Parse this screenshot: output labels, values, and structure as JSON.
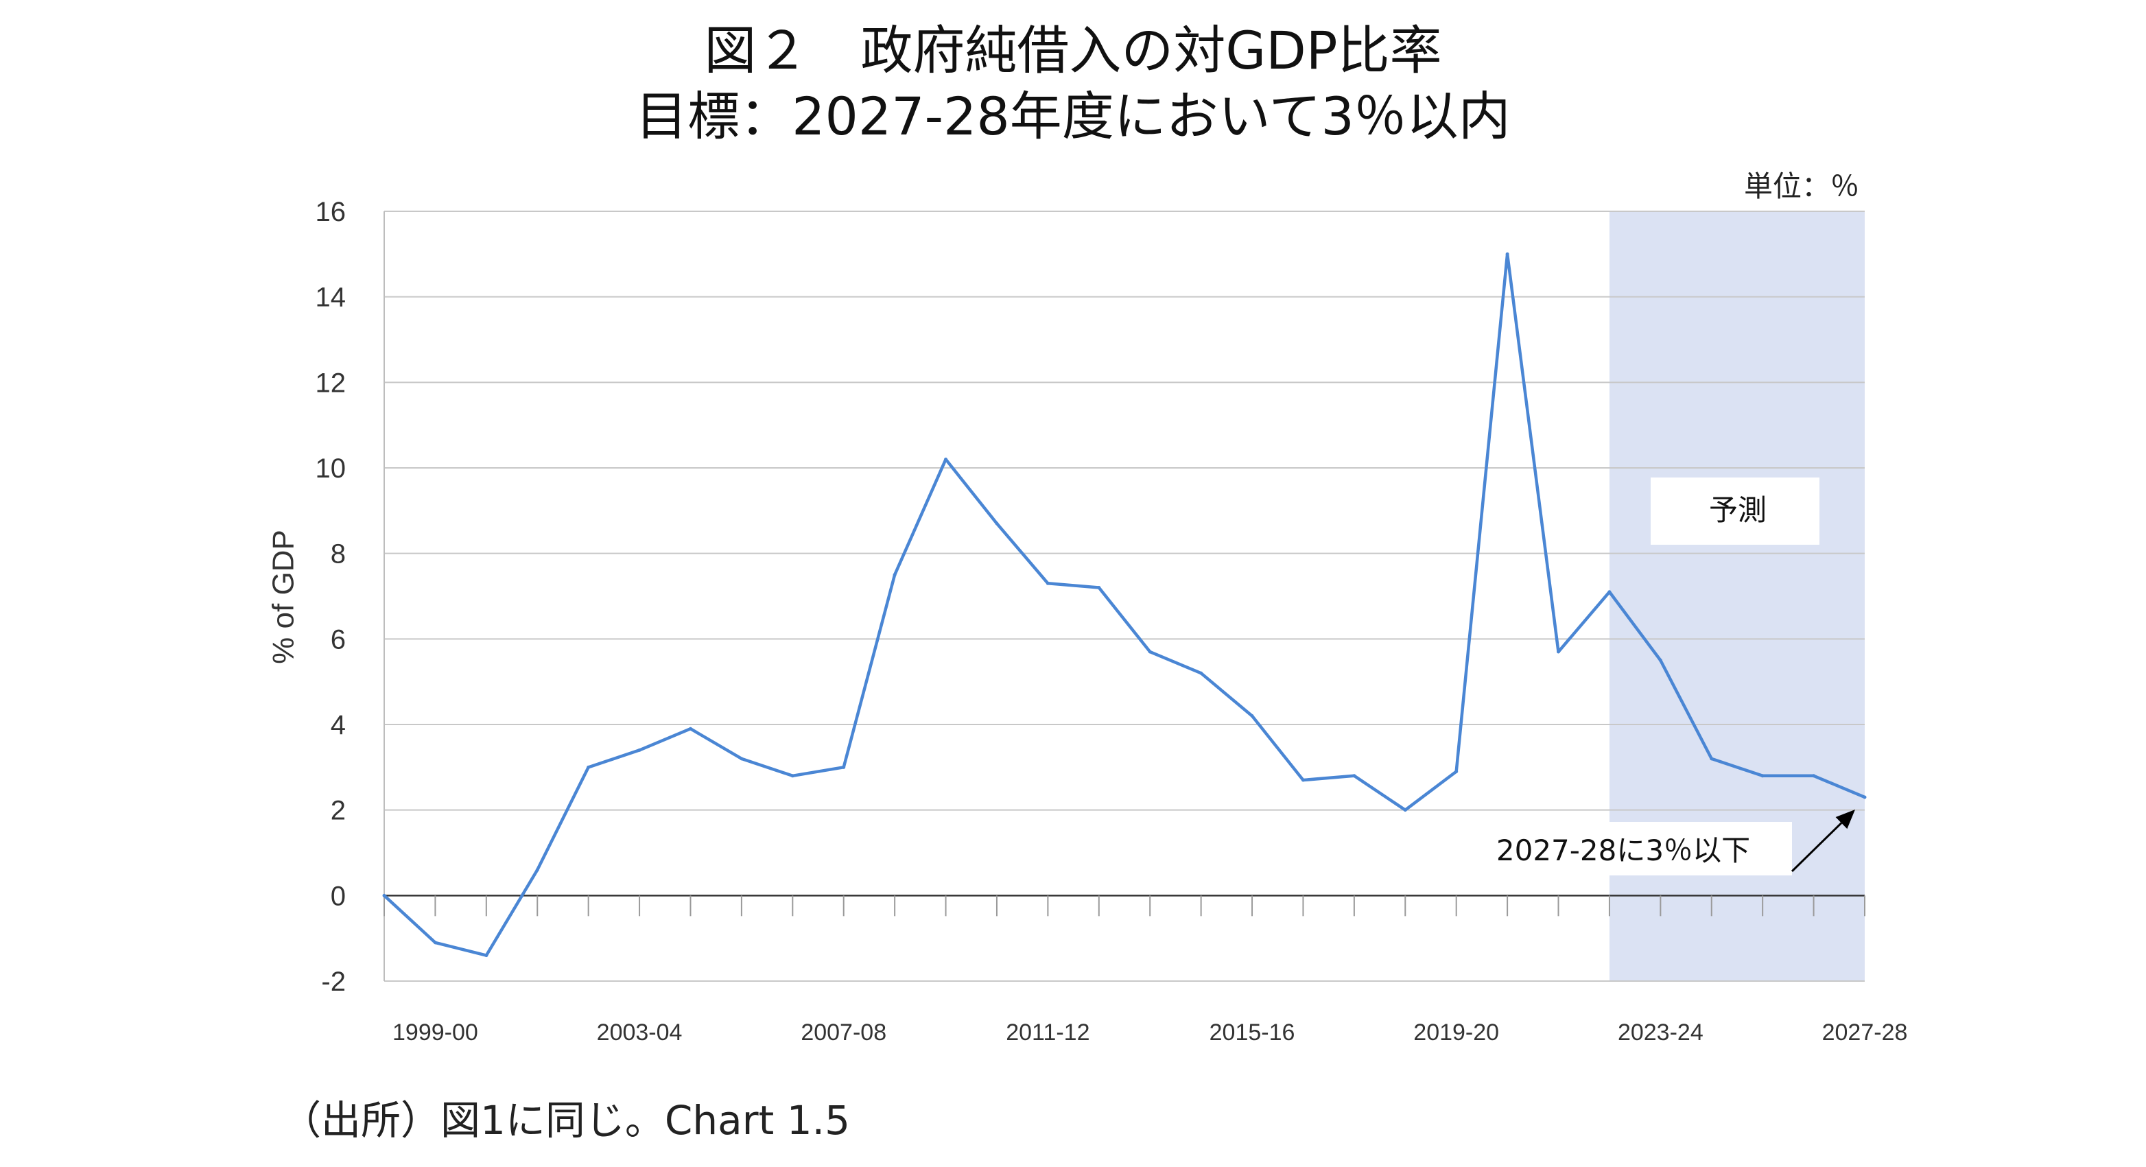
{
  "title_line1": "図２　政府純借入の対GDP比率",
  "title_line2": "目標：2027-28年度において3％以内",
  "unit_label": "単位：％",
  "source_note": "（出所）図1に同じ。Chart 1.5",
  "chart_data": {
    "type": "line",
    "ylabel": "% of GDP",
    "ylim": [
      -2,
      16
    ],
    "yticks": [
      -2,
      0,
      2,
      4,
      6,
      8,
      10,
      12,
      14,
      16
    ],
    "x": [
      "1998-99",
      "1999-00",
      "2000-01",
      "2001-02",
      "2002-03",
      "2003-04",
      "2004-05",
      "2005-06",
      "2006-07",
      "2007-08",
      "2008-09",
      "2009-10",
      "2010-11",
      "2011-12",
      "2012-13",
      "2013-14",
      "2014-15",
      "2015-16",
      "2016-17",
      "2017-18",
      "2018-19",
      "2019-20",
      "2020-21",
      "2021-22",
      "2022-23",
      "2023-24",
      "2024-25",
      "2025-26",
      "2026-27",
      "2027-28"
    ],
    "xtick_labels": [
      "1999-00",
      "2003-04",
      "2007-08",
      "2011-12",
      "2015-16",
      "2019-20",
      "2023-24",
      "2027-28"
    ],
    "series": [
      {
        "values": [
          0.0,
          -1.1,
          -1.4,
          0.6,
          3.0,
          3.4,
          3.9,
          3.2,
          2.8,
          3.0,
          7.5,
          10.2,
          8.7,
          7.3,
          7.2,
          5.7,
          5.2,
          4.2,
          2.7,
          2.8,
          2.0,
          2.9,
          15.0,
          5.7,
          7.1,
          5.5,
          3.2,
          2.8,
          2.8,
          2.3
        ],
        "color": "#4a86d4"
      }
    ],
    "forecast": {
      "label": "予測",
      "start": "2022-23",
      "end": "2027-28",
      "color": "#dbe2f3"
    },
    "annotation": {
      "text": "2027-28に3％以下",
      "target": "2027-28"
    },
    "grid": true,
    "legend": "none"
  }
}
